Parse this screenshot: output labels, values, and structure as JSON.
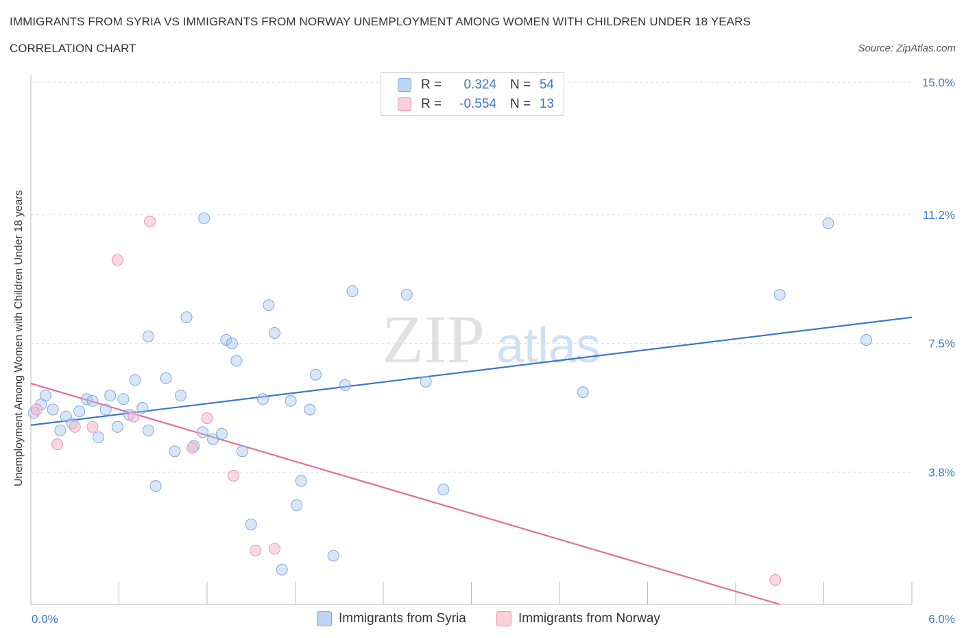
{
  "header": {
    "title": "IMMIGRANTS FROM SYRIA VS IMMIGRANTS FROM NORWAY UNEMPLOYMENT AMONG WOMEN WITH CHILDREN UNDER 18 YEARS",
    "subtitle": "CORRELATION CHART",
    "source": "Source: ZipAtlas.com"
  },
  "watermark": {
    "zip": "ZIP",
    "atlas": "atlas"
  },
  "legend": {
    "rows": [
      {
        "r_label": "R =",
        "r_value": "0.324",
        "n_label": "N =",
        "n_value": "54",
        "color": "#a8c8f0"
      },
      {
        "r_label": "R =",
        "r_value": "-0.554",
        "n_label": "N =",
        "n_value": "13",
        "color": "#f5b8cb"
      }
    ]
  },
  "bottom_legend": {
    "syria": "Immigrants from Syria",
    "norway": "Immigrants from Norway"
  },
  "chart_data": {
    "type": "scatter",
    "title": "IMMIGRANTS FROM SYRIA VS IMMIGRANTS FROM NORWAY UNEMPLOYMENT AMONG WOMEN WITH CHILDREN UNDER 18 YEARS",
    "subtitle": "CORRELATION CHART",
    "xlabel": "",
    "ylabel": "Unemployment Among Women with Children Under 18 years",
    "xlim": [
      0,
      6
    ],
    "ylim": [
      0,
      15.2
    ],
    "x_tick_labels": [
      "0.0%",
      "6.0%"
    ],
    "y_tick_labels": [
      "15.0%",
      "11.2%",
      "7.5%",
      "3.8%"
    ],
    "y_ticks": [
      15.0,
      11.2,
      7.5,
      3.8
    ],
    "grid": "horizontal dashed",
    "legend_position": "top-center",
    "colors": {
      "syria": "#3a78c6",
      "syria_fill": "#a8c8f0",
      "norway": "#e06d99",
      "norway_fill": "#f5b8cb"
    },
    "series": [
      {
        "name": "Immigrants from Syria",
        "trend": {
          "x": [
            0,
            6
          ],
          "y": [
            5.15,
            8.25
          ]
        },
        "points": [
          [
            0.02,
            5.5
          ],
          [
            0.07,
            5.75
          ],
          [
            0.1,
            6.0
          ],
          [
            0.15,
            5.6
          ],
          [
            0.2,
            5.0
          ],
          [
            0.24,
            5.4
          ],
          [
            0.28,
            5.2
          ],
          [
            0.33,
            5.55
          ],
          [
            0.38,
            5.9
          ],
          [
            0.42,
            5.85
          ],
          [
            0.46,
            4.8
          ],
          [
            0.51,
            5.6
          ],
          [
            0.54,
            6.0
          ],
          [
            0.59,
            5.1
          ],
          [
            0.63,
            5.9
          ],
          [
            0.67,
            5.45
          ],
          [
            0.71,
            6.45
          ],
          [
            0.76,
            5.65
          ],
          [
            0.8,
            5.0
          ],
          [
            0.8,
            7.7
          ],
          [
            0.85,
            3.4
          ],
          [
            0.92,
            6.5
          ],
          [
            0.98,
            4.4
          ],
          [
            1.02,
            6.0
          ],
          [
            1.06,
            8.25
          ],
          [
            1.11,
            4.55
          ],
          [
            1.17,
            4.95
          ],
          [
            1.18,
            11.1
          ],
          [
            1.24,
            4.75
          ],
          [
            1.3,
            4.9
          ],
          [
            1.33,
            7.6
          ],
          [
            1.37,
            7.5
          ],
          [
            1.4,
            7.0
          ],
          [
            1.44,
            4.4
          ],
          [
            1.5,
            2.3
          ],
          [
            1.58,
            5.9
          ],
          [
            1.62,
            8.6
          ],
          [
            1.66,
            7.8
          ],
          [
            1.71,
            1.0
          ],
          [
            1.77,
            5.85
          ],
          [
            1.81,
            2.85
          ],
          [
            1.84,
            3.55
          ],
          [
            1.9,
            5.6
          ],
          [
            1.94,
            6.6
          ],
          [
            2.06,
            1.4
          ],
          [
            2.14,
            6.3
          ],
          [
            2.19,
            9.0
          ],
          [
            2.56,
            8.9
          ],
          [
            2.69,
            6.4
          ],
          [
            2.81,
            3.3
          ],
          [
            3.76,
            6.1
          ],
          [
            5.1,
            8.9
          ],
          [
            5.43,
            10.95
          ],
          [
            5.69,
            7.6
          ]
        ]
      },
      {
        "name": "Immigrants from Norway",
        "trend": {
          "x": [
            0,
            5.1
          ],
          "y": [
            6.35,
            0
          ]
        },
        "points": [
          [
            0.04,
            5.6
          ],
          [
            0.18,
            4.6
          ],
          [
            0.3,
            5.1
          ],
          [
            0.42,
            5.1
          ],
          [
            0.59,
            9.9
          ],
          [
            0.7,
            5.4
          ],
          [
            0.81,
            11.0
          ],
          [
            1.1,
            4.5
          ],
          [
            1.2,
            5.35
          ],
          [
            1.38,
            3.7
          ],
          [
            1.53,
            1.55
          ],
          [
            1.66,
            1.6
          ],
          [
            5.07,
            0.7
          ]
        ]
      }
    ]
  }
}
